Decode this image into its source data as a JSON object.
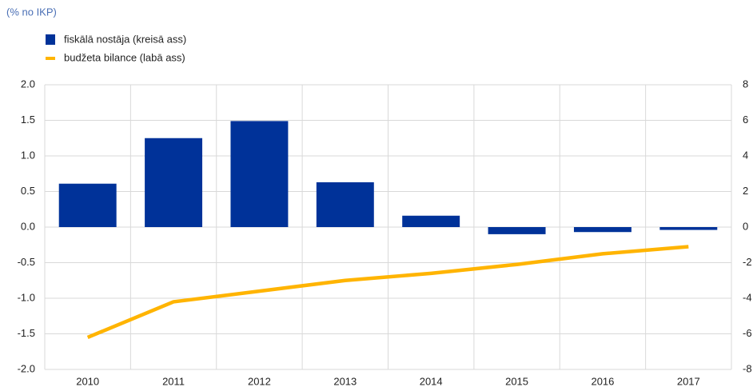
{
  "chart_data": {
    "type": "bar_line",
    "subtitle": "(% no IKP)",
    "categories": [
      "2010",
      "2011",
      "2012",
      "2013",
      "2014",
      "2015",
      "2016",
      "2017"
    ],
    "series": [
      {
        "name": "fiskālā nostāja (kreisā ass)",
        "type": "bar",
        "color": "#003299",
        "axis": "y",
        "values": [
          0.61,
          1.25,
          1.49,
          0.63,
          0.16,
          -0.1,
          -0.07,
          -0.04
        ]
      },
      {
        "name": "budžeta bilance (labā ass)",
        "type": "line",
        "color": "#ffb400",
        "axis": "y2",
        "values": [
          -6.2,
          -4.2,
          -3.6,
          -3.0,
          -2.6,
          -2.1,
          -1.5,
          -1.1
        ]
      }
    ],
    "ylim": [
      -2,
      2
    ],
    "yticks": [
      {
        "value": 2,
        "label": "2.0"
      },
      {
        "value": 1.5,
        "label": "1.5"
      },
      {
        "value": 1,
        "label": "1.0"
      },
      {
        "value": 0.5,
        "label": "0.5"
      },
      {
        "value": 0,
        "label": "0.0"
      },
      {
        "value": -0.5,
        "label": "-0.5"
      },
      {
        "value": -1,
        "label": "-1.0"
      },
      {
        "value": -1.5,
        "label": "-1.5"
      },
      {
        "value": -2,
        "label": "-2.0"
      }
    ],
    "y2lim": [
      -8,
      8
    ],
    "y2ticks": [
      8,
      6,
      4,
      2,
      0,
      -2,
      -4,
      -6,
      -8
    ],
    "grid": true
  }
}
